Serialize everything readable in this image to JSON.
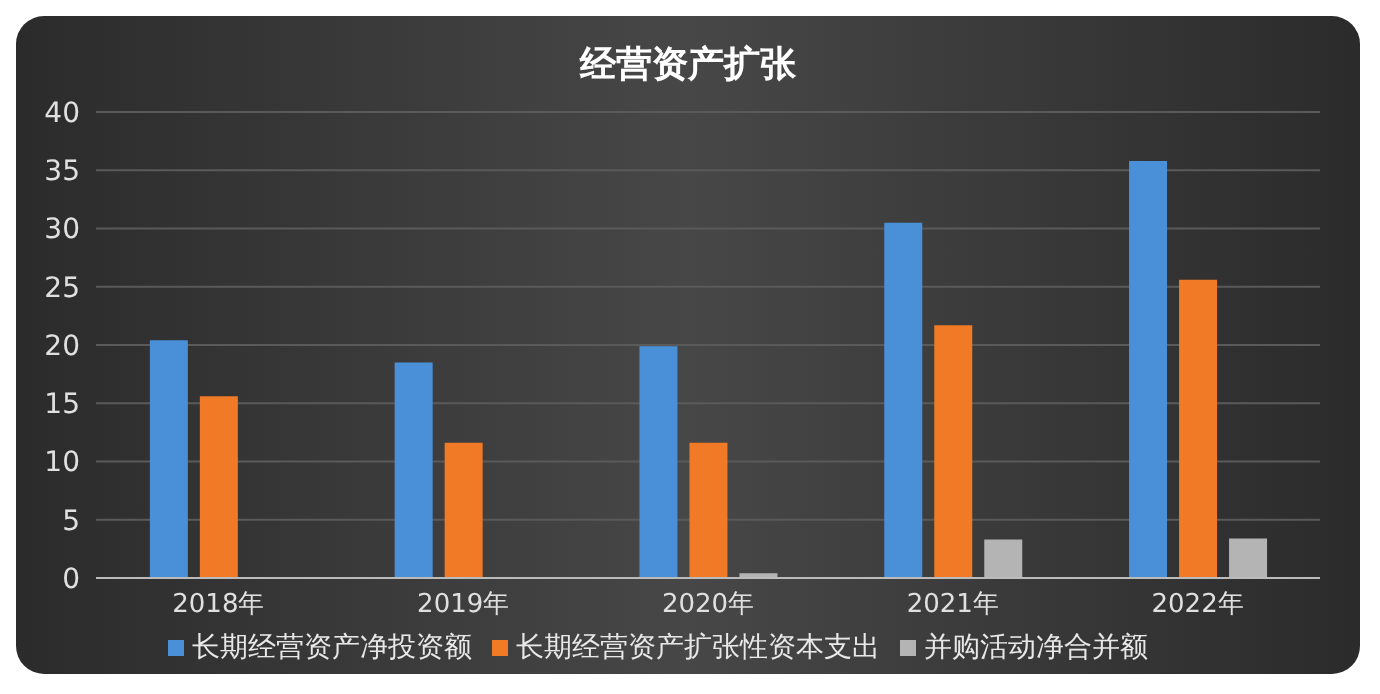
{
  "chart_data": {
    "type": "bar",
    "title": "经营资产扩张",
    "categories": [
      "2018年",
      "2019年",
      "2020年",
      "2021年",
      "2022年"
    ],
    "series": [
      {
        "name": "长期经营资产净投资额",
        "color": "#4a90d9",
        "values": [
          20.4,
          18.5,
          19.9,
          30.5,
          35.8
        ]
      },
      {
        "name": "长期经营资产扩张性资本支出",
        "color": "#f07a26",
        "values": [
          15.6,
          11.6,
          11.6,
          21.7,
          25.6
        ]
      },
      {
        "name": "并购活动净合并额",
        "color": "#b4b4b4",
        "values": [
          0,
          0,
          0.4,
          3.3,
          3.4
        ]
      }
    ],
    "ylim": [
      0,
      40
    ],
    "yticks": [
      0,
      5,
      10,
      15,
      20,
      25,
      30,
      35,
      40
    ],
    "grid": "y",
    "legend": "bottom"
  }
}
